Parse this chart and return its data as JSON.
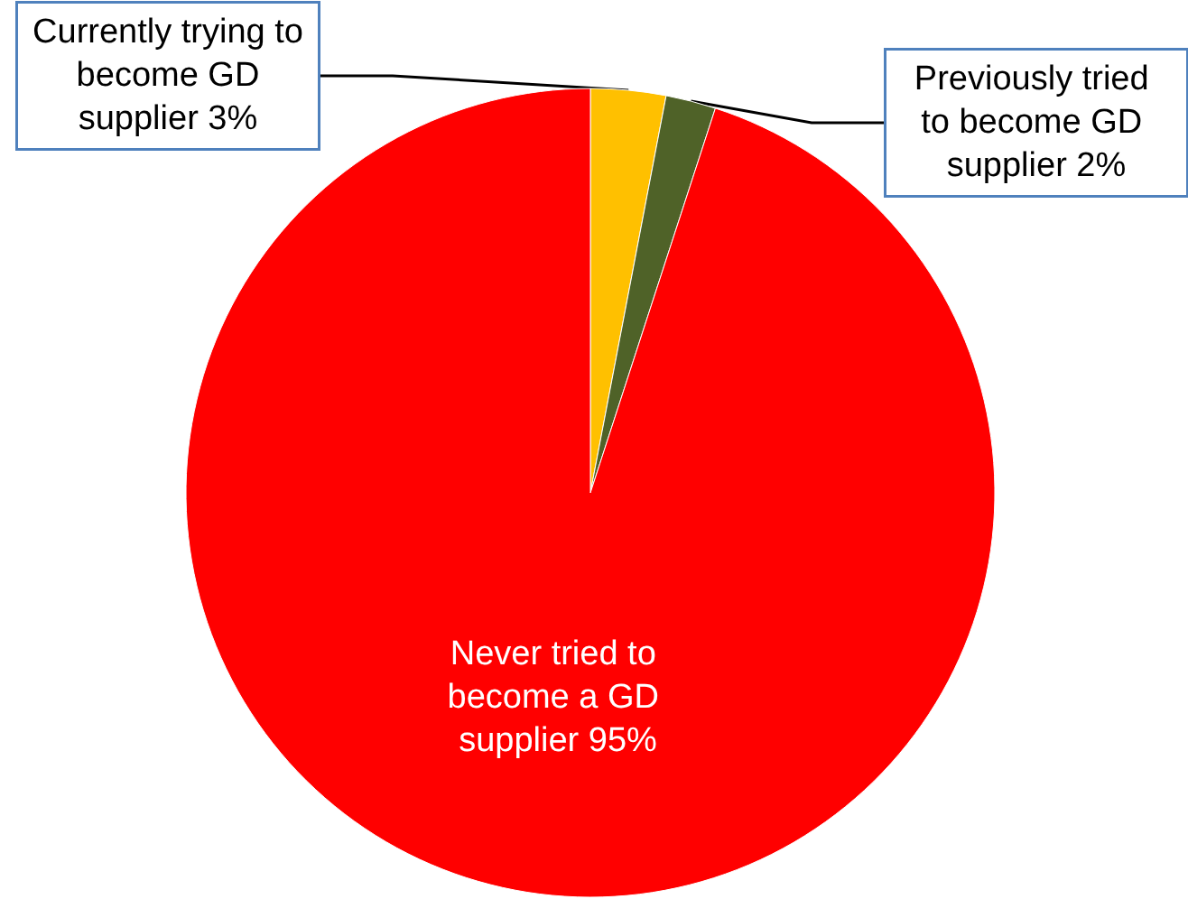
{
  "chart_data": {
    "type": "pie",
    "categories": [
      "Currently trying to become GD supplier",
      "Previously tried to become GD supplier",
      "Never tried to become a GD supplier"
    ],
    "values": [
      3,
      2,
      95
    ],
    "value_labels": [
      "3%",
      "2%",
      "95%"
    ],
    "colors": [
      "#ffc000",
      "#4f6228",
      "#ff0000"
    ]
  }
}
